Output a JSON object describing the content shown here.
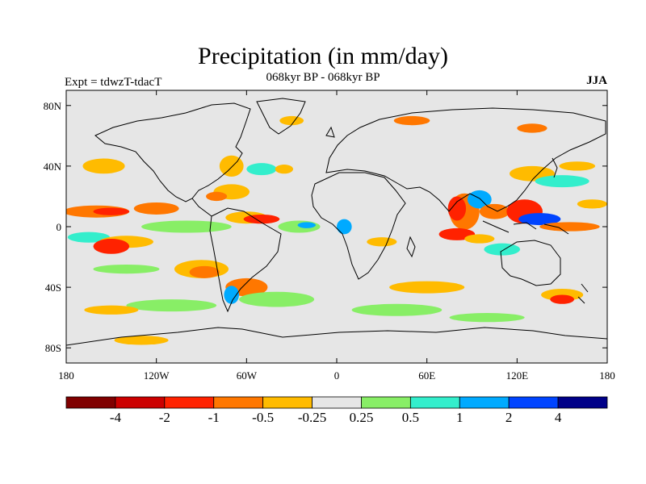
{
  "title": "Precipitation (in mm/day)",
  "subtitle": "068kyr BP - 068kyr BP",
  "left_label": "Expt = tdwzT-tdacT",
  "right_label": "JJA",
  "lat_ticks": [
    {
      "label": "80N",
      "value": 80
    },
    {
      "label": "40N",
      "value": 40
    },
    {
      "label": "0",
      "value": 0
    },
    {
      "label": "40S",
      "value": -40
    },
    {
      "label": "80S",
      "value": -80
    }
  ],
  "lon_ticks": [
    {
      "label": "180",
      "value": -180
    },
    {
      "label": "120W",
      "value": -120
    },
    {
      "label": "60W",
      "value": -60
    },
    {
      "label": "0",
      "value": 0
    },
    {
      "label": "60E",
      "value": 60
    },
    {
      "label": "120E",
      "value": 120
    },
    {
      "label": "180",
      "value": 180
    }
  ],
  "colorbar": {
    "colors": [
      "#800000",
      "#cc0000",
      "#ff2200",
      "#ff7700",
      "#ffbb00",
      "#e6e6e6",
      "#88ee66",
      "#33eecc",
      "#00aaff",
      "#0044ff",
      "#000088"
    ],
    "labels": [
      "-4",
      "-2",
      "-1",
      "-0.5",
      "-0.25",
      "0.25",
      "0.5",
      "1",
      "2",
      "4"
    ]
  },
  "land_color": "#e6e6e6",
  "anomaly_patches": [
    {
      "lon": -160,
      "lat": 10,
      "rx": 22,
      "ry": 4,
      "color": "#ff7700"
    },
    {
      "lon": -150,
      "lat": 10,
      "rx": 12,
      "ry": 2.5,
      "color": "#ff2200"
    },
    {
      "lon": -120,
      "lat": 12,
      "rx": 15,
      "ry": 4,
      "color": "#ff7700"
    },
    {
      "lon": -165,
      "lat": -7,
      "rx": 14,
      "ry": 3.5,
      "color": "#33eecc"
    },
    {
      "lon": -140,
      "lat": -10,
      "rx": 18,
      "ry": 4,
      "color": "#ffbb00"
    },
    {
      "lon": -150,
      "lat": -13,
      "rx": 12,
      "ry": 5,
      "color": "#ff2200"
    },
    {
      "lon": -140,
      "lat": -28,
      "rx": 22,
      "ry": 3,
      "color": "#88ee66"
    },
    {
      "lon": -90,
      "lat": -28,
      "rx": 18,
      "ry": 6,
      "color": "#ffbb00"
    },
    {
      "lon": -88,
      "lat": -30,
      "rx": 10,
      "ry": 4,
      "color": "#ff7700"
    },
    {
      "lon": -100,
      "lat": 0,
      "rx": 30,
      "ry": 4,
      "color": "#88ee66"
    },
    {
      "lon": -60,
      "lat": 6,
      "rx": 14,
      "ry": 4,
      "color": "#ffbb00"
    },
    {
      "lon": -50,
      "lat": 5,
      "rx": 12,
      "ry": 3,
      "color": "#ff2200"
    },
    {
      "lon": -25,
      "lat": 0,
      "rx": 14,
      "ry": 4,
      "color": "#88ee66"
    },
    {
      "lon": -20,
      "lat": 1,
      "rx": 6,
      "ry": 2,
      "color": "#00aaff"
    },
    {
      "lon": -70,
      "lat": 23,
      "rx": 12,
      "ry": 5,
      "color": "#ffbb00"
    },
    {
      "lon": -80,
      "lat": 20,
      "rx": 7,
      "ry": 3,
      "color": "#ff7700"
    },
    {
      "lon": -70,
      "lat": 40,
      "rx": 8,
      "ry": 7,
      "color": "#ffbb00"
    },
    {
      "lon": -50,
      "lat": 38,
      "rx": 10,
      "ry": 4,
      "color": "#33eecc"
    },
    {
      "lon": -35,
      "lat": 38,
      "rx": 6,
      "ry": 3,
      "color": "#ffbb00"
    },
    {
      "lon": -155,
      "lat": 40,
      "rx": 14,
      "ry": 5,
      "color": "#ffbb00"
    },
    {
      "lon": -60,
      "lat": -40,
      "rx": 14,
      "ry": 6,
      "color": "#ff7700"
    },
    {
      "lon": -70,
      "lat": -45,
      "rx": 5,
      "ry": 6,
      "color": "#00aaff"
    },
    {
      "lon": -40,
      "lat": -48,
      "rx": 25,
      "ry": 5,
      "color": "#88ee66"
    },
    {
      "lon": -110,
      "lat": -52,
      "rx": 30,
      "ry": 4,
      "color": "#88ee66"
    },
    {
      "lon": -150,
      "lat": -55,
      "rx": 18,
      "ry": 3,
      "color": "#ffbb00"
    },
    {
      "lon": -130,
      "lat": -75,
      "rx": 18,
      "ry": 3,
      "color": "#ffbb00"
    },
    {
      "lon": 60,
      "lat": -40,
      "rx": 25,
      "ry": 4,
      "color": "#ffbb00"
    },
    {
      "lon": 40,
      "lat": -55,
      "rx": 30,
      "ry": 4,
      "color": "#88ee66"
    },
    {
      "lon": 100,
      "lat": -60,
      "rx": 25,
      "ry": 3,
      "color": "#88ee66"
    },
    {
      "lon": 150,
      "lat": -45,
      "rx": 14,
      "ry": 4,
      "color": "#ffbb00"
    },
    {
      "lon": 150,
      "lat": -48,
      "rx": 8,
      "ry": 3,
      "color": "#ff2200"
    },
    {
      "lon": 85,
      "lat": 10,
      "rx": 10,
      "ry": 12,
      "color": "#ff7700"
    },
    {
      "lon": 80,
      "lat": 12,
      "rx": 6,
      "ry": 8,
      "color": "#ff2200"
    },
    {
      "lon": 95,
      "lat": 18,
      "rx": 8,
      "ry": 6,
      "color": "#00aaff"
    },
    {
      "lon": 105,
      "lat": 10,
      "rx": 10,
      "ry": 5,
      "color": "#ff7700"
    },
    {
      "lon": 125,
      "lat": 10,
      "rx": 12,
      "ry": 8,
      "color": "#ff2200"
    },
    {
      "lon": 135,
      "lat": 5,
      "rx": 14,
      "ry": 4,
      "color": "#0044ff"
    },
    {
      "lon": 155,
      "lat": 0,
      "rx": 20,
      "ry": 3,
      "color": "#ff7700"
    },
    {
      "lon": 80,
      "lat": -5,
      "rx": 12,
      "ry": 4,
      "color": "#ff2200"
    },
    {
      "lon": 95,
      "lat": -8,
      "rx": 10,
      "ry": 3,
      "color": "#ffbb00"
    },
    {
      "lon": 110,
      "lat": -15,
      "rx": 12,
      "ry": 4,
      "color": "#33eecc"
    },
    {
      "lon": 130,
      "lat": 35,
      "rx": 15,
      "ry": 5,
      "color": "#ffbb00"
    },
    {
      "lon": 150,
      "lat": 30,
      "rx": 18,
      "ry": 4,
      "color": "#33eecc"
    },
    {
      "lon": 160,
      "lat": 40,
      "rx": 12,
      "ry": 3,
      "color": "#ffbb00"
    },
    {
      "lon": 30,
      "lat": -10,
      "rx": 10,
      "ry": 3,
      "color": "#ffbb00"
    },
    {
      "lon": 5,
      "lat": 0,
      "rx": 5,
      "ry": 5,
      "color": "#00aaff"
    },
    {
      "lon": -30,
      "lat": 70,
      "rx": 8,
      "ry": 3,
      "color": "#ffbb00"
    },
    {
      "lon": 50,
      "lat": 70,
      "rx": 12,
      "ry": 3,
      "color": "#ff7700"
    },
    {
      "lon": 130,
      "lat": 65,
      "rx": 10,
      "ry": 3,
      "color": "#ff7700"
    },
    {
      "lon": 170,
      "lat": 15,
      "rx": 10,
      "ry": 3,
      "color": "#ffbb00"
    }
  ]
}
